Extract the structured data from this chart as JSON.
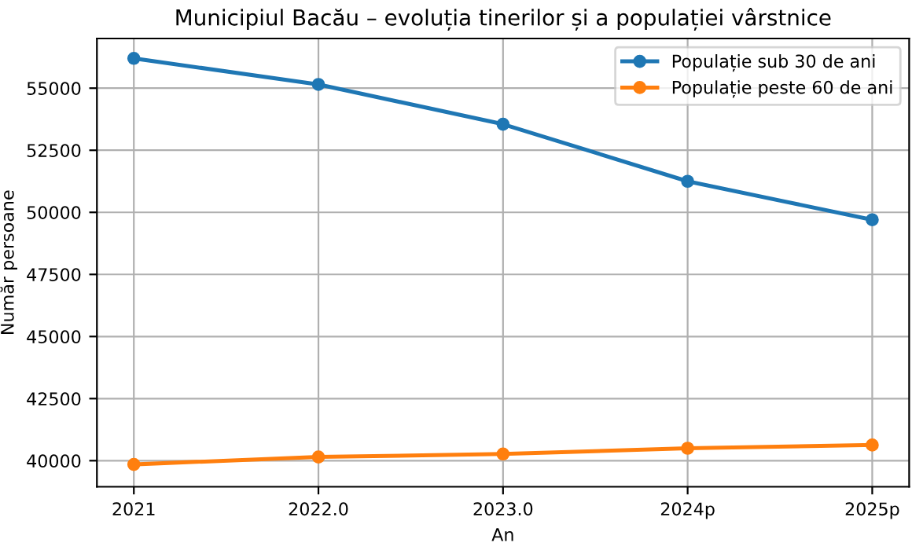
{
  "chart_data": {
    "type": "line",
    "title": "Municipiul Bacău – evoluția tinerilor și a populației vârstnice",
    "xlabel": "An",
    "ylabel": "Număr persoane",
    "categories": [
      "2021",
      "2022.0",
      "2023.0",
      "2024p",
      "2025p"
    ],
    "series": [
      {
        "name": "Populație sub 30 de ani",
        "color": "#1f77b4",
        "values": [
          56200,
          55150,
          53550,
          51250,
          49700
        ]
      },
      {
        "name": "Populație peste 60 de ani",
        "color": "#ff7f0e",
        "values": [
          39850,
          40150,
          40270,
          40500,
          40630
        ]
      }
    ],
    "ylim": [
      38950,
      57000
    ],
    "yticks": [
      40000,
      42500,
      45000,
      47500,
      50000,
      52500,
      55000
    ],
    "grid": true,
    "legend": "top right",
    "marker": "circle",
    "line_style": "solid"
  }
}
